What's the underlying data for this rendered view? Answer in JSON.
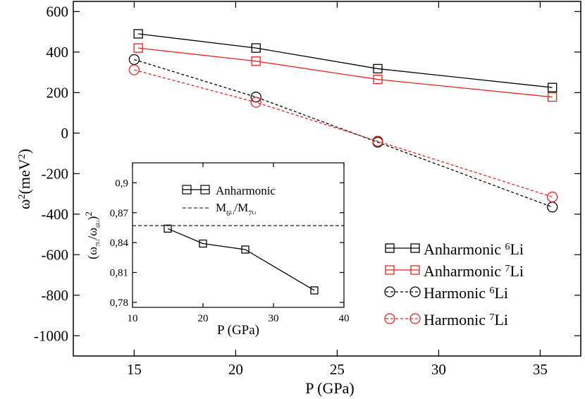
{
  "colors": {
    "black": "#000000",
    "red": "#e8221f"
  },
  "chart_data": [
    {
      "id": "main",
      "type": "line",
      "xlabel": "P (GPa)",
      "ylabel_base": "ω",
      "ylabel_sup": "2",
      "ylabel_unit": "(meV",
      "ylabel_unit_sup": "2",
      "ylabel_close": ")",
      "xlim": [
        12,
        37
      ],
      "ylim": [
        -1100,
        650
      ],
      "xticks": [
        15,
        20,
        25,
        30,
        35
      ],
      "xtick_labels": [
        "15",
        "20",
        "25",
        "30",
        "35"
      ],
      "yticks": [
        600,
        400,
        200,
        0,
        -200,
        -400,
        -600,
        -800,
        -1000
      ],
      "ytick_labels": [
        "600",
        "400",
        "200",
        "0",
        "-200",
        "-400",
        "-600",
        "-800",
        "-1000"
      ],
      "series": [
        {
          "name": "Anharmonic",
          "isotope": "6",
          "element": "Li",
          "color": "#000000",
          "dash": false,
          "marker": "square",
          "x": [
            15.2,
            21.0,
            27.0,
            35.6
          ],
          "y": [
            490,
            420,
            318,
            225
          ]
        },
        {
          "name": "Anharmonic",
          "isotope": "7",
          "element": "Li",
          "color": "#e8221f",
          "dash": false,
          "marker": "square",
          "x": [
            15.2,
            21.0,
            27.0,
            35.6
          ],
          "y": [
            420,
            355,
            265,
            178
          ]
        },
        {
          "name": "Harmonic",
          "isotope": "6",
          "element": "Li",
          "color": "#000000",
          "dash": true,
          "marker": "circle",
          "x": [
            15.0,
            21.0,
            27.0,
            35.6
          ],
          "y": [
            363,
            178,
            -45,
            -365
          ]
        },
        {
          "name": "Harmonic",
          "isotope": "7",
          "element": "Li",
          "color": "#e8221f",
          "dash": true,
          "marker": "circle",
          "x": [
            15.0,
            21.0,
            27.0,
            35.6
          ],
          "y": [
            312,
            152,
            -40,
            -315
          ]
        }
      ]
    },
    {
      "id": "inset",
      "type": "line",
      "xlabel": "P (GPa)",
      "xlim": [
        10,
        40
      ],
      "ylim": [
        0.775,
        0.92
      ],
      "xticks": [
        10,
        20,
        30,
        40
      ],
      "xtick_labels": [
        "10",
        "20",
        "30",
        "40"
      ],
      "yticks": [
        0.9,
        0.87,
        0.84,
        0.81,
        0.78
      ],
      "ytick_labels": [
        "0,9",
        "0,87",
        "0,84",
        "0,81",
        "0,78"
      ],
      "ylabel": {
        "open": "(ω",
        "sub1": "7",
        "sub1b": "Li",
        "mid": "/ω",
        "sub2": "6",
        "sub2b": "Li",
        "close": ")",
        "sup": "2"
      },
      "series": [
        {
          "name": "Anharmonic",
          "color": "#000000",
          "marker": "square",
          "x": [
            15.0,
            20.0,
            26.0,
            35.8
          ],
          "y": [
            0.854,
            0.839,
            0.833,
            0.792
          ]
        }
      ],
      "reference_line": {
        "y": 0.857,
        "label": {
          "a": "M",
          "a_sub": "6",
          "a_subb": "Li",
          "sep": "/M",
          "b_sub": "7",
          "b_subb": "Li"
        }
      }
    }
  ]
}
